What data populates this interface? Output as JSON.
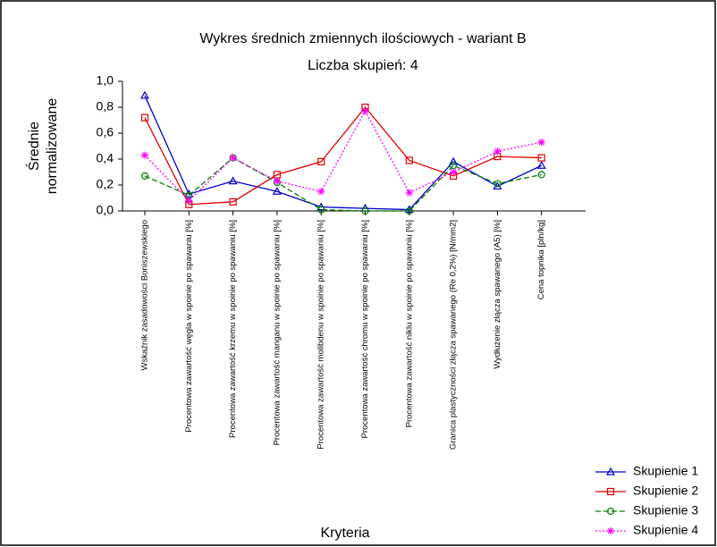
{
  "chart_data": {
    "type": "line",
    "title": "Wykres średnich zmiennych ilościowych - wariant B",
    "subtitle": "Liczba skupień: 4",
    "y_label": "Średnie normalizowane",
    "x_label": "Kryteria",
    "categories": [
      "Wskaźnik zasadowości Boniszewskiego",
      "Procentowa zawartość węgla w spoinie po spawaniu [%]",
      "Procentowa zawartość krzemu w spoinie po spawaniu [%]",
      "Procentowa zawartość manganu w spoinie po spawaniu [%]",
      "Procentowa zawartość molibdenu w spoinie po spawaniu [%]",
      "Procentowa zawartość chromu w spoinie po spawaniu [%]",
      "Procentowa zawartość niklu w spoinie po spawaniu [%]",
      "Granica plastyczności złącza spawanego (Re 0,2%) [N/mm2]",
      "Wydłużenie złącza spawanego (A5) [%]",
      "Cena topnika [pln/kg]"
    ],
    "series": [
      {
        "name": "Skupienie 1",
        "color": "#0000cc",
        "marker": "triangle",
        "dash": "solid",
        "values": [
          0.89,
          0.13,
          0.23,
          0.15,
          0.03,
          0.02,
          0.01,
          0.38,
          0.19,
          0.35
        ]
      },
      {
        "name": "Skupienie 2",
        "color": "#e00000",
        "marker": "square",
        "dash": "solid",
        "values": [
          0.72,
          0.05,
          0.07,
          0.28,
          0.38,
          0.8,
          0.39,
          0.27,
          0.42,
          0.41
        ]
      },
      {
        "name": "Skupienie 3",
        "color": "#008000",
        "marker": "circle",
        "dash": "dashed",
        "values": [
          0.27,
          0.12,
          0.41,
          0.22,
          0.01,
          0.0,
          0.0,
          0.35,
          0.21,
          0.28
        ]
      },
      {
        "name": "Skupienie 4",
        "color": "#ff00ff",
        "marker": "star",
        "dash": "dotted",
        "values": [
          0.43,
          0.08,
          0.41,
          0.23,
          0.15,
          0.77,
          0.14,
          0.3,
          0.46,
          0.53
        ]
      }
    ],
    "ylim": [
      0,
      1
    ],
    "yticks": [
      {
        "value": 0,
        "label": "0,0"
      },
      {
        "value": 0.2,
        "label": "0,2"
      },
      {
        "value": 0.4,
        "label": "0,4"
      },
      {
        "value": 0.6,
        "label": "0,6"
      },
      {
        "value": 0.8,
        "label": "0,8"
      },
      {
        "value": 1,
        "label": "1,0"
      }
    ],
    "grid": false,
    "legend": "lower right"
  }
}
